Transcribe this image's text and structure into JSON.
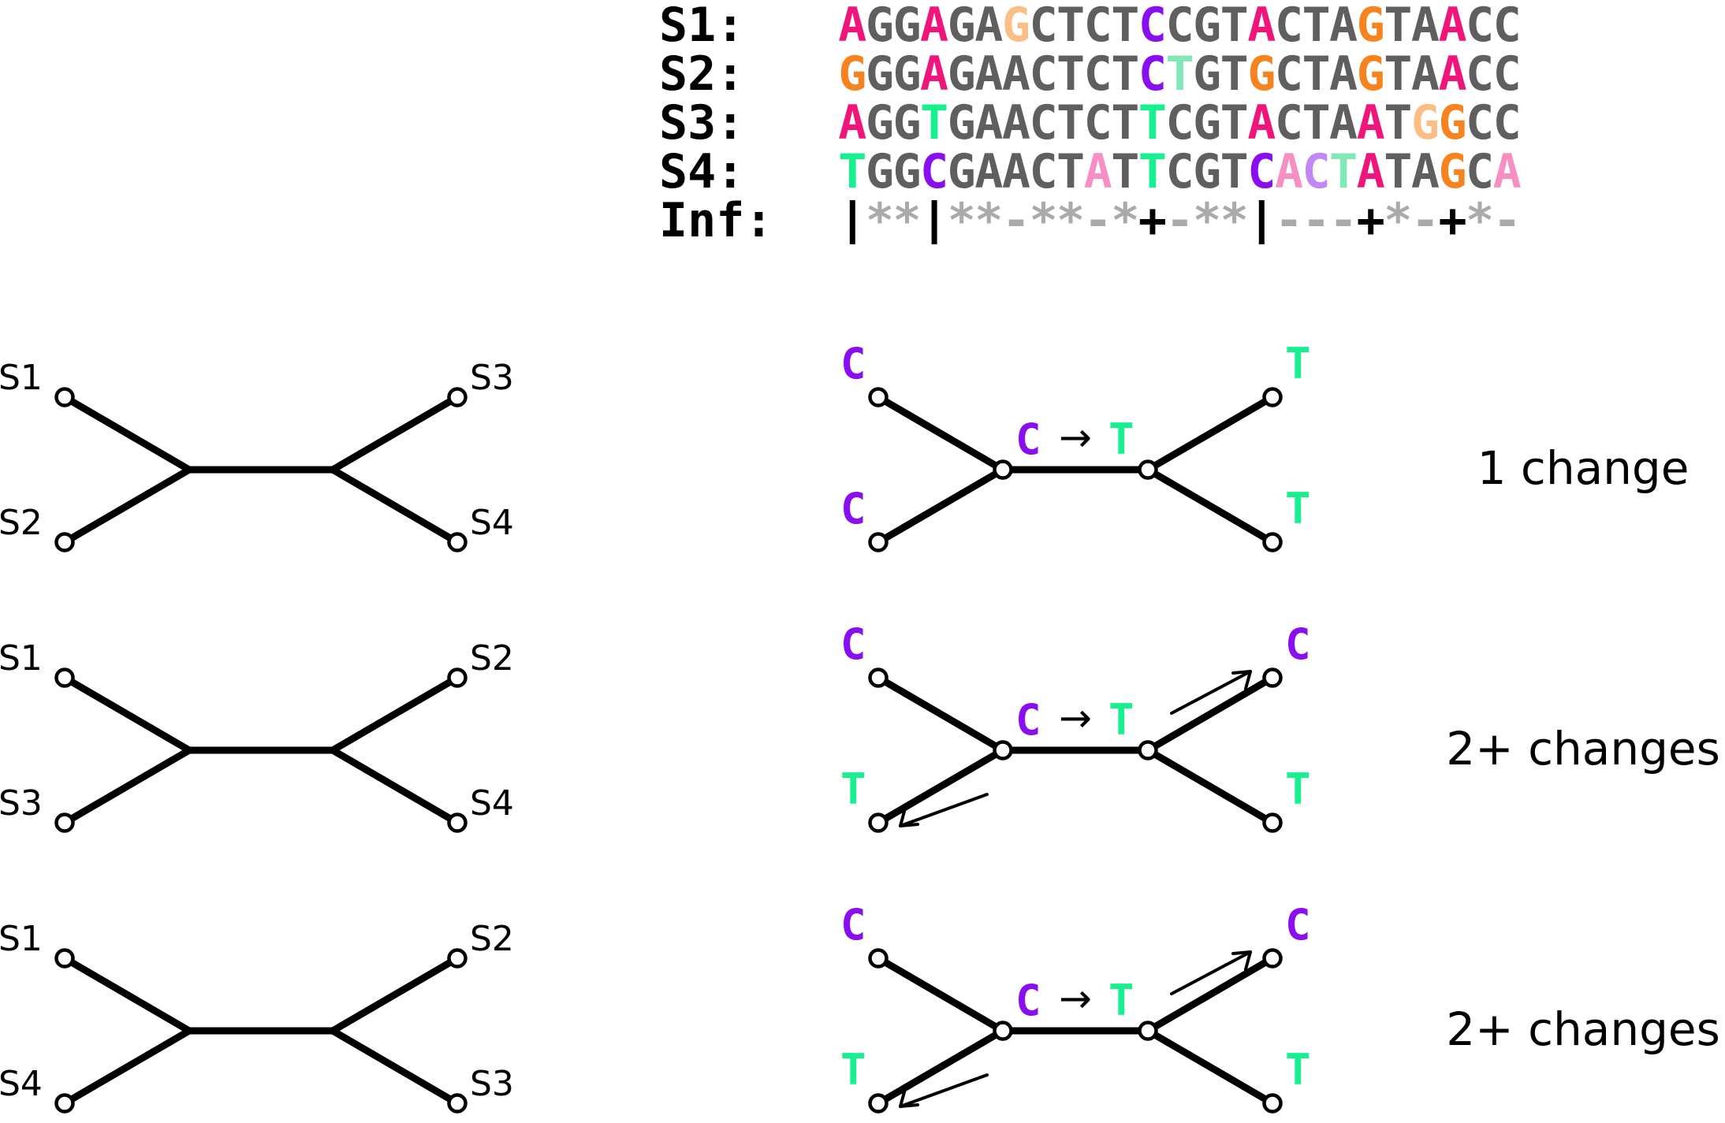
{
  "alignment": {
    "rows": [
      {
        "label": "S1:",
        "seq": "AGGAGAGCTCTCCGTACTAGTAACC"
      },
      {
        "label": "S2:",
        "seq": "GGGAGAACTCTCTGTGCTAGTAACC"
      },
      {
        "label": "S3:",
        "seq": "AGGTGAACTCTTCGTACTAATGGCC"
      },
      {
        "label": "S4:",
        "seq": "TGGCGAACTATTCGTCACTATAGCA"
      },
      {
        "label": "Inf:",
        "seq": "|**|**-**-*+-**|---+*-+*-"
      }
    ],
    "colors": {
      "default": "#5f5f5f",
      "pink": "#f0157a",
      "orange": "#f7831e",
      "light_orange": "#fbbf86",
      "purple": "#8a0ff0",
      "green": "#17f08e",
      "light_green": "#82e8b7",
      "light_pink": "#f78ec4",
      "lilac": "#c287f5",
      "inf_symbol": "#000000",
      "inf_dim": "#aaaaaa"
    },
    "highlights": [
      {
        "row": 0,
        "col": 0,
        "color": "pink"
      },
      {
        "row": 0,
        "col": 3,
        "color": "pink"
      },
      {
        "row": 0,
        "col": 6,
        "color": "light_orange"
      },
      {
        "row": 0,
        "col": 11,
        "color": "purple"
      },
      {
        "row": 0,
        "col": 15,
        "color": "pink"
      },
      {
        "row": 0,
        "col": 19,
        "color": "orange"
      },
      {
        "row": 0,
        "col": 22,
        "color": "pink"
      },
      {
        "row": 1,
        "col": 0,
        "color": "orange"
      },
      {
        "row": 1,
        "col": 3,
        "color": "pink"
      },
      {
        "row": 1,
        "col": 11,
        "color": "purple"
      },
      {
        "row": 1,
        "col": 12,
        "color": "light_green"
      },
      {
        "row": 1,
        "col": 15,
        "color": "orange"
      },
      {
        "row": 1,
        "col": 19,
        "color": "orange"
      },
      {
        "row": 1,
        "col": 22,
        "color": "pink"
      },
      {
        "row": 2,
        "col": 0,
        "color": "pink"
      },
      {
        "row": 2,
        "col": 3,
        "color": "green"
      },
      {
        "row": 2,
        "col": 11,
        "color": "green"
      },
      {
        "row": 2,
        "col": 15,
        "color": "pink"
      },
      {
        "row": 2,
        "col": 19,
        "color": "pink"
      },
      {
        "row": 2,
        "col": 21,
        "color": "light_orange"
      },
      {
        "row": 2,
        "col": 22,
        "color": "orange"
      },
      {
        "row": 3,
        "col": 0,
        "color": "green"
      },
      {
        "row": 3,
        "col": 3,
        "color": "purple"
      },
      {
        "row": 3,
        "col": 9,
        "color": "light_pink"
      },
      {
        "row": 3,
        "col": 11,
        "color": "green"
      },
      {
        "row": 3,
        "col": 15,
        "color": "purple"
      },
      {
        "row": 3,
        "col": 16,
        "color": "light_pink"
      },
      {
        "row": 3,
        "col": 17,
        "color": "lilac"
      },
      {
        "row": 3,
        "col": 18,
        "color": "light_green"
      },
      {
        "row": 3,
        "col": 19,
        "color": "pink"
      },
      {
        "row": 3,
        "col": 22,
        "color": "orange"
      },
      {
        "row": 3,
        "col": 24,
        "color": "light_pink"
      }
    ]
  },
  "topologies": [
    {
      "leaves": [
        "S1",
        "S2",
        "S3",
        "S4"
      ]
    },
    {
      "leaves": [
        "S1",
        "S3",
        "S2",
        "S4"
      ]
    },
    {
      "leaves": [
        "S1",
        "S4",
        "S2",
        "S3"
      ]
    }
  ],
  "site_trees": [
    {
      "leaves": [
        "C",
        "C",
        "T",
        "T"
      ],
      "internal_left": "C",
      "internal_right": "T",
      "transition_arrow": "→",
      "verdict": "1 change",
      "extra_changes": false
    },
    {
      "leaves": [
        "C",
        "T",
        "C",
        "T"
      ],
      "internal_left": "C",
      "internal_right": "T",
      "transition_arrow": "→",
      "verdict": "2+ changes",
      "extra_changes": true
    },
    {
      "leaves": [
        "C",
        "T",
        "C",
        "T"
      ],
      "internal_left": "C",
      "internal_right": "T",
      "transition_arrow": "→",
      "verdict": "2+ changes",
      "extra_changes": true
    }
  ],
  "base_colors": {
    "C": "#8a0ff0",
    "T": "#17f08e"
  }
}
